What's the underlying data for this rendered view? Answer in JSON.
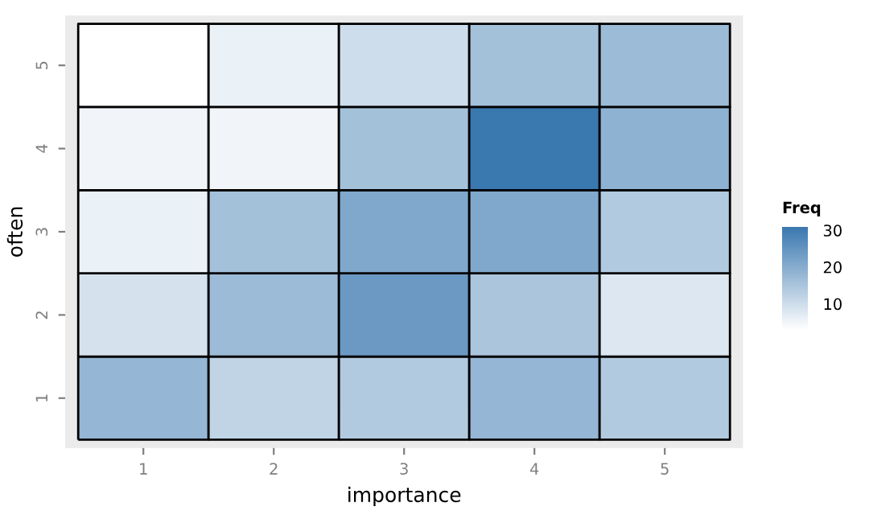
{
  "chart_data": {
    "type": "heatmap",
    "xlabel": "importance",
    "ylabel": "often",
    "clabel": "Freq",
    "categories": [
      "1",
      "2",
      "3",
      "4",
      "5"
    ],
    "y_categories": [
      "5",
      "4",
      "3",
      "2",
      "1"
    ],
    "cells": [
      [
        3,
        6,
        10,
        16,
        17
      ],
      [
        5,
        5,
        16,
        31,
        19
      ],
      [
        6,
        16,
        21,
        21,
        14
      ],
      [
        9,
        17,
        24,
        15,
        8
      ],
      [
        18,
        12,
        14,
        18,
        14
      ]
    ],
    "clim": [
      3,
      31
    ],
    "cticks": [
      10,
      20,
      30
    ],
    "colors": [
      "#ffffff",
      "#3a78b0"
    ]
  }
}
